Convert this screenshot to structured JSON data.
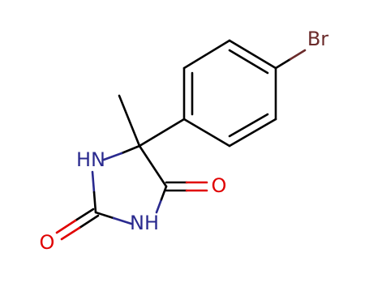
{
  "atoms": [
    {
      "label": "Br"
    },
    {
      "label": "HN"
    },
    {
      "label": "NH"
    },
    {
      "label": "O"
    },
    {
      "label": "O"
    }
  ]
}
